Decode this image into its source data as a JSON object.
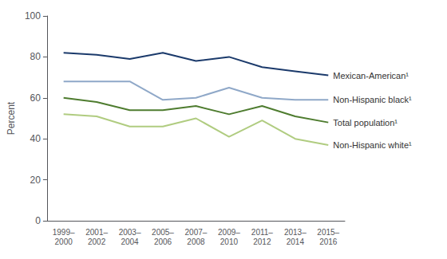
{
  "chart_data": {
    "type": "line",
    "categories": [
      "1999–\n2000",
      "2001–\n2002",
      "2003–\n2004",
      "2005–\n2006",
      "2007–\n2008",
      "2009–\n2010",
      "2011–\n2012",
      "2013–\n2014",
      "2015–\n2016"
    ],
    "ylabel": "Percent",
    "ylim": [
      0,
      100
    ],
    "yticks": [
      0,
      20,
      40,
      60,
      80,
      100
    ],
    "grid": false,
    "series": [
      {
        "name": "Mexican-American¹",
        "color": "#1b3a6b",
        "values": [
          82,
          81,
          79,
          82,
          78,
          80,
          75,
          73,
          71
        ]
      },
      {
        "name": "Non-Hispanic black¹",
        "color": "#8fa8c8",
        "values": [
          68,
          68,
          68,
          59,
          60,
          65,
          60,
          59,
          59
        ]
      },
      {
        "name": "Total population¹",
        "color": "#4e7c2f",
        "values": [
          60,
          58,
          54,
          54,
          56,
          52,
          56,
          51,
          48
        ]
      },
      {
        "name": "Non-Hispanic white¹",
        "color": "#b0cc80",
        "values": [
          52,
          51,
          46,
          46,
          50,
          41,
          49,
          40,
          37
        ]
      }
    ]
  }
}
